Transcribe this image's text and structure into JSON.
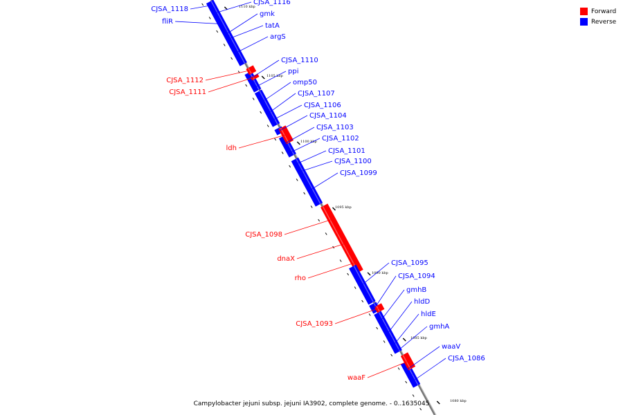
{
  "caption": "Campylobacter jejuni subsp. jejuni IA3902, complete genome. - 0..1635045",
  "legend": {
    "forward": {
      "label": "Forward",
      "color": "#ff0000"
    },
    "reverse": {
      "label": "Reverse",
      "color": "#0000ff"
    }
  },
  "colors": {
    "forward": "#ff0000",
    "reverse": "#0000ff",
    "backbone": "#888888"
  },
  "ticks": [
    {
      "label": "1110 kbp"
    },
    {
      "label": "1105 kbp"
    },
    {
      "label": "1100 kbp"
    },
    {
      "label": "1095 kbp"
    },
    {
      "label": "1090 kbp"
    },
    {
      "label": "1085 kbp"
    },
    {
      "label": "1080 kbp"
    }
  ],
  "genes": [
    {
      "name": "CJSA_1118",
      "strand": "reverse"
    },
    {
      "name": "CJSA_1116",
      "strand": "reverse"
    },
    {
      "name": "fliR",
      "strand": "reverse"
    },
    {
      "name": "gmk",
      "strand": "reverse"
    },
    {
      "name": "tatA",
      "strand": "reverse"
    },
    {
      "name": "argS",
      "strand": "reverse"
    },
    {
      "name": "CJSA_1110",
      "strand": "reverse"
    },
    {
      "name": "ppi",
      "strand": "reverse"
    },
    {
      "name": "CJSA_1112",
      "strand": "forward"
    },
    {
      "name": "CJSA_1111",
      "strand": "forward"
    },
    {
      "name": "omp50",
      "strand": "reverse"
    },
    {
      "name": "CJSA_1107",
      "strand": "reverse"
    },
    {
      "name": "CJSA_1106",
      "strand": "reverse"
    },
    {
      "name": "CJSA_1104",
      "strand": "reverse"
    },
    {
      "name": "CJSA_1103",
      "strand": "reverse"
    },
    {
      "name": "ldh",
      "strand": "forward"
    },
    {
      "name": "CJSA_1102",
      "strand": "reverse"
    },
    {
      "name": "CJSA_1101",
      "strand": "reverse"
    },
    {
      "name": "CJSA_1100",
      "strand": "reverse"
    },
    {
      "name": "CJSA_1099",
      "strand": "reverse"
    },
    {
      "name": "CJSA_1098",
      "strand": "forward"
    },
    {
      "name": "dnaX",
      "strand": "forward"
    },
    {
      "name": "rho",
      "strand": "forward"
    },
    {
      "name": "CJSA_1095",
      "strand": "reverse"
    },
    {
      "name": "CJSA_1094",
      "strand": "reverse"
    },
    {
      "name": "gmhB",
      "strand": "reverse"
    },
    {
      "name": "hldD",
      "strand": "reverse"
    },
    {
      "name": "hldE",
      "strand": "reverse"
    },
    {
      "name": "CJSA_1093",
      "strand": "forward"
    },
    {
      "name": "gmhA",
      "strand": "reverse"
    },
    {
      "name": "waaV",
      "strand": "reverse"
    },
    {
      "name": "CJSA_1086",
      "strand": "reverse"
    },
    {
      "name": "waaF",
      "strand": "forward"
    }
  ]
}
